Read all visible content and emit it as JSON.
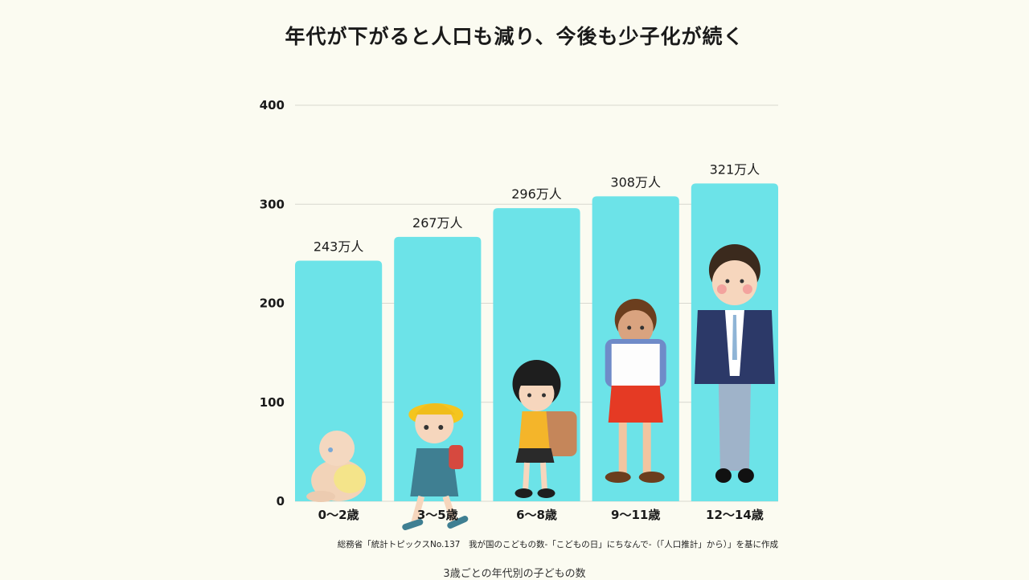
{
  "chart_data": {
    "type": "bar",
    "title": "年代が下がると人口も減り、今後も少子化が続く",
    "categories": [
      "0〜2歳",
      "3〜5歳",
      "6〜8歳",
      "9〜11歳",
      "12〜14歳"
    ],
    "values": [
      243,
      267,
      296,
      308,
      321
    ],
    "data_labels": [
      "243万人",
      "267万人",
      "296万人",
      "308万人",
      "321万人"
    ],
    "unit": "万人",
    "ylim": [
      0,
      400
    ],
    "yticks": [
      0,
      100,
      200,
      300,
      400
    ],
    "grid": true,
    "bar_color": "#6ce3e8",
    "grid_color": "#d8d8d0",
    "illustrations": [
      "baby-icon",
      "kindergartner-icon",
      "elementary-girl-icon",
      "schoolboy-icon",
      "middle-schooler-icon"
    ]
  },
  "source_note": "総務省「統計トピックスNo.137　我が国のこどもの数-「こどもの日」にちなんで-（「人口推計」から）」を基に作成",
  "caption": "3歳ごとの年代別の子どもの数"
}
